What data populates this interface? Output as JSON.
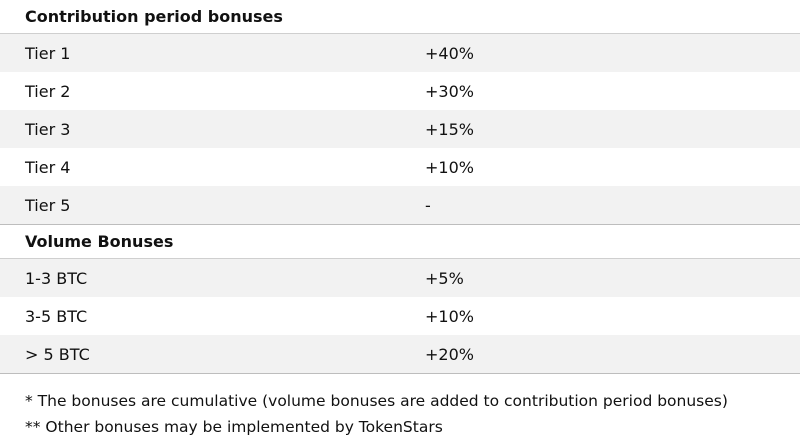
{
  "contribution": {
    "title": "Contribution period bonuses",
    "rows": [
      {
        "label": "Tier 1",
        "value": "+40%"
      },
      {
        "label": "Tier 2",
        "value": "+30%"
      },
      {
        "label": "Tier 3",
        "value": "+15%"
      },
      {
        "label": "Tier 4",
        "value": "+10%"
      },
      {
        "label": "Tier 5",
        "value": "-"
      }
    ]
  },
  "volume": {
    "title": "Volume Bonuses",
    "rows": [
      {
        "label": "1-3 BTC",
        "value": "+5%"
      },
      {
        "label": "3-5 BTC",
        "value": "+10%"
      },
      {
        "label": "> 5 BTC",
        "value": "+20%"
      }
    ]
  },
  "notes": [
    "* The bonuses are cumulative (volume bonuses are added to contribution period bonuses)",
    "** Other bonuses may be implemented by TokenStars"
  ],
  "colors": {
    "shaded_row": "#f2f2f2",
    "text": "#111111"
  }
}
